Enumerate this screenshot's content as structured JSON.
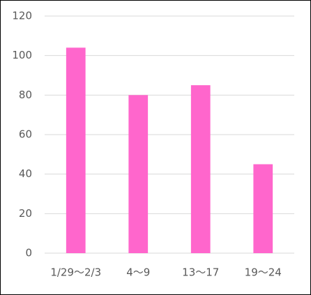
{
  "chart_data": {
    "type": "bar",
    "categories": [
      "1/29〜2/3",
      "4〜9",
      "13〜17",
      "19〜24"
    ],
    "values": [
      104,
      80,
      85,
      45
    ],
    "color": "#ff66cc",
    "ylim": [
      0,
      120
    ],
    "yticks": [
      0,
      20,
      40,
      60,
      80,
      100,
      120
    ],
    "grid": true
  }
}
